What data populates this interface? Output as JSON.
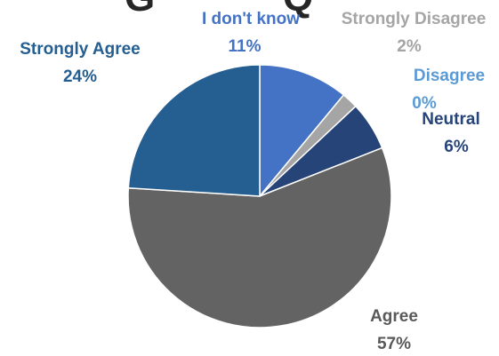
{
  "chart_data": {
    "type": "pie",
    "title": "",
    "start_angle_deg": 0,
    "direction": "clockwise",
    "legend": "none",
    "slices": [
      {
        "label": "I don't know",
        "value": 11,
        "value_label": "11%",
        "color": "#4472C4",
        "label_color": "#4472C4"
      },
      {
        "label": "Strongly Disagree",
        "value": 2,
        "value_label": "2%",
        "color": "#A5A5A5",
        "label_color": "#A5A5A5"
      },
      {
        "label": "Disagree",
        "value": 0,
        "value_label": "0%",
        "color": "#5B9BD5",
        "label_color": "#5B9BD5"
      },
      {
        "label": "Neutral",
        "value": 6,
        "value_label": "6%",
        "color": "#264478",
        "label_color": "#264478"
      },
      {
        "label": "Agree",
        "value": 57,
        "value_label": "57%",
        "color": "#636363",
        "label_color": "#595959"
      },
      {
        "label": "Strongly Agree",
        "value": 24,
        "value_label": "24%",
        "color": "#255E91",
        "label_color": "#255E91"
      }
    ]
  }
}
